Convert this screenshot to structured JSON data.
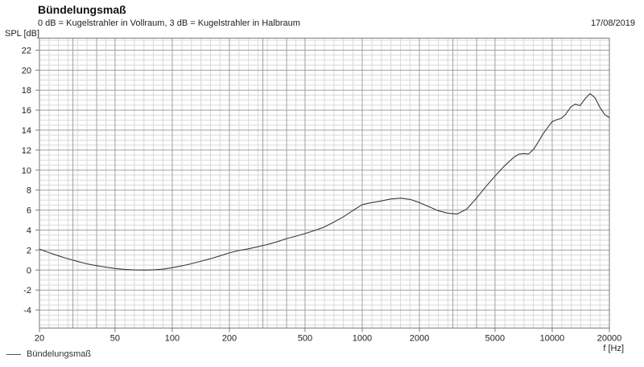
{
  "header": {
    "title": "Bündelungsmaß",
    "subtitle": "0 dB = Kugelstrahler in Vollraum, 3 dB = Kugelstrahler in Halbraum",
    "date": "17/08/2019"
  },
  "chart_data": {
    "type": "line",
    "title": "Bündelungsmaß",
    "subtitle": "0 dB = Kugelstrahler in Vollraum, 3 dB = Kugelstrahler in Halbraum",
    "annotations": {
      "date": "17/08/2019"
    },
    "xlabel": "f [Hz]",
    "ylabel": "SPL [dB]",
    "x_scale": "log",
    "xlim": [
      20,
      20000
    ],
    "ylim": [
      -5.8,
      23.2
    ],
    "grid": true,
    "legend_position": "bottom-left",
    "x_tick_values": [
      20,
      50,
      100,
      200,
      500,
      1000,
      2000,
      5000,
      10000,
      20000
    ],
    "x_tick_labels": [
      "20",
      "50",
      "100",
      "200",
      "500",
      "1000",
      "2000",
      "5000",
      "10000",
      "20000"
    ],
    "x_grid_major": [
      20,
      30,
      40,
      50,
      100,
      200,
      300,
      400,
      500,
      1000,
      2000,
      3000,
      4000,
      5000,
      10000,
      20000
    ],
    "x_minor_divisions_per_decade": 20,
    "y_tick_min": -4,
    "y_tick_max": 22,
    "y_tick_step": 2,
    "y_minor_step": 0.5,
    "colors": {
      "curve": "#3a3a3a",
      "grid_minor": "#d9d9d9",
      "grid_major": "#a0a0a0",
      "frame": "#7a7a7a",
      "text": "#222222"
    },
    "series": [
      {
        "name": "Bündelungsmaß",
        "color": "#3a3a3a",
        "points": [
          [
            20,
            2.1
          ],
          [
            22.4,
            1.75
          ],
          [
            25,
            1.45
          ],
          [
            28,
            1.15
          ],
          [
            31.5,
            0.88
          ],
          [
            35.5,
            0.63
          ],
          [
            40,
            0.44
          ],
          [
            45,
            0.28
          ],
          [
            50,
            0.16
          ],
          [
            56,
            0.07
          ],
          [
            63,
            0.02
          ],
          [
            71,
            0.0
          ],
          [
            80,
            0.03
          ],
          [
            90,
            0.1
          ],
          [
            100,
            0.24
          ],
          [
            112,
            0.42
          ],
          [
            125,
            0.62
          ],
          [
            140,
            0.86
          ],
          [
            160,
            1.15
          ],
          [
            180,
            1.45
          ],
          [
            200,
            1.72
          ],
          [
            224,
            1.95
          ],
          [
            250,
            2.12
          ],
          [
            280,
            2.32
          ],
          [
            315,
            2.55
          ],
          [
            355,
            2.82
          ],
          [
            400,
            3.15
          ],
          [
            450,
            3.4
          ],
          [
            500,
            3.65
          ],
          [
            560,
            3.95
          ],
          [
            630,
            4.3
          ],
          [
            710,
            4.8
          ],
          [
            800,
            5.35
          ],
          [
            900,
            6.0
          ],
          [
            1000,
            6.55
          ],
          [
            1120,
            6.75
          ],
          [
            1250,
            6.9
          ],
          [
            1400,
            7.1
          ],
          [
            1600,
            7.2
          ],
          [
            1800,
            7.05
          ],
          [
            2000,
            6.75
          ],
          [
            2240,
            6.35
          ],
          [
            2500,
            5.95
          ],
          [
            2800,
            5.7
          ],
          [
            3150,
            5.6
          ],
          [
            3550,
            6.1
          ],
          [
            4000,
            7.2
          ],
          [
            4500,
            8.4
          ],
          [
            5000,
            9.4
          ],
          [
            5600,
            10.4
          ],
          [
            6300,
            11.3
          ],
          [
            6700,
            11.6
          ],
          [
            7100,
            11.65
          ],
          [
            7500,
            11.6
          ],
          [
            8000,
            12.1
          ],
          [
            8500,
            12.9
          ],
          [
            9000,
            13.7
          ],
          [
            9500,
            14.3
          ],
          [
            10000,
            14.85
          ],
          [
            10600,
            15.05
          ],
          [
            11200,
            15.2
          ],
          [
            11800,
            15.6
          ],
          [
            12500,
            16.3
          ],
          [
            13200,
            16.6
          ],
          [
            14000,
            16.45
          ],
          [
            15000,
            17.2
          ],
          [
            15800,
            17.65
          ],
          [
            16800,
            17.25
          ],
          [
            17800,
            16.3
          ],
          [
            18900,
            15.55
          ],
          [
            20000,
            15.25
          ]
        ]
      }
    ]
  }
}
